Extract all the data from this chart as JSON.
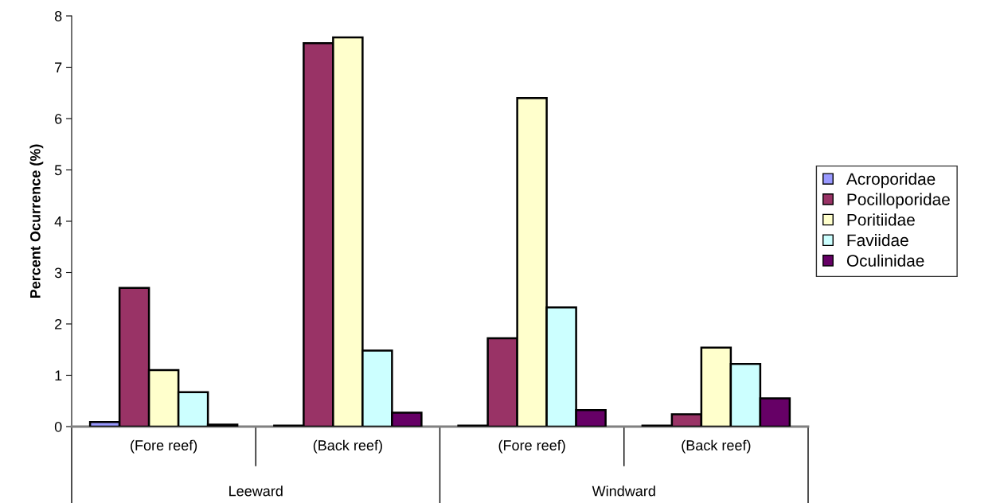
{
  "chart_data": {
    "type": "bar",
    "ylabel": "Percent Ocurrence (%)",
    "categories": [
      "(Fore reef)",
      "(Back reef)",
      "(Fore reef)",
      "(Back reef)"
    ],
    "series": [
      {
        "name": "Acroporidae",
        "color": "#9999ff",
        "values": [
          0.09,
          0.02,
          0.02,
          0.02
        ]
      },
      {
        "name": "Pocilloporidae",
        "color": "#993366",
        "values": [
          2.7,
          7.47,
          1.72,
          0.24
        ]
      },
      {
        "name": "Poritiidae",
        "color": "#ffffcc",
        "values": [
          1.1,
          7.58,
          6.4,
          1.54
        ]
      },
      {
        "name": "Faviidae",
        "color": "#ccffff",
        "values": [
          0.67,
          1.48,
          2.32,
          1.22
        ]
      },
      {
        "name": "Oculinidae",
        "color": "#660066",
        "values": [
          0.04,
          0.27,
          0.32,
          0.55
        ]
      }
    ],
    "annotations": [
      "Leeward",
      "Windward"
    ],
    "ylim": [
      0,
      8
    ],
    "yticks": [
      0,
      1,
      2,
      3,
      4,
      5,
      6,
      7,
      8
    ],
    "grid": false,
    "legend": "right"
  }
}
